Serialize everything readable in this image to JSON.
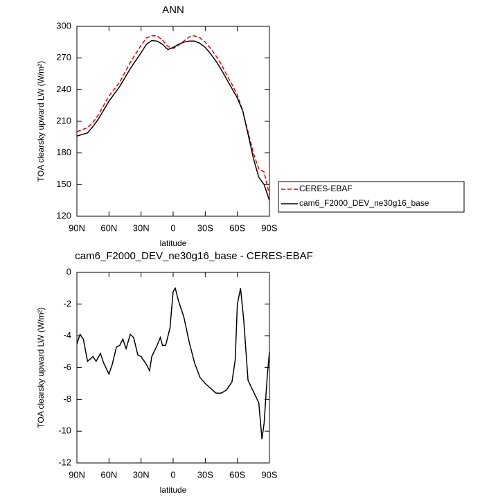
{
  "chart_data": [
    {
      "type": "line",
      "title": "ANN",
      "x_label": "latitude",
      "y_label": "TOA clearsky upward LW (W/m²)",
      "x": [
        90,
        80,
        75,
        70,
        60,
        50,
        40,
        30,
        25,
        20,
        15,
        10,
        5,
        0,
        -5,
        -10,
        -15,
        -20,
        -25,
        -30,
        -35,
        -40,
        -45,
        -50,
        -55,
        -60,
        -65,
        -70,
        -75,
        -80,
        -85,
        -90
      ],
      "series": [
        {
          "name": "CERES-EBAF",
          "color": "#e00000",
          "dashed": true,
          "values": [
            200,
            204,
            209,
            216,
            234,
            247,
            266,
            282,
            289,
            291,
            291,
            287,
            281,
            279,
            282,
            286,
            290,
            291,
            289,
            285,
            279,
            272,
            264,
            254,
            245,
            235,
            220,
            200,
            180,
            165,
            162,
            140
          ]
        },
        {
          "name": "cam6_F2000_DEV_ne30g16_base",
          "color": "#000000",
          "dashed": false,
          "values": [
            196,
            199,
            205,
            212,
            229,
            243,
            260,
            275,
            283,
            286.5,
            286,
            283,
            278,
            280,
            283,
            285,
            286,
            286,
            284,
            280,
            274,
            267,
            259,
            250,
            241,
            232,
            220,
            198,
            175,
            157,
            150,
            135
          ]
        }
      ],
      "xlim": [
        90,
        -90
      ],
      "xticks": [
        {
          "value": 90,
          "label": "90N"
        },
        {
          "value": 60,
          "label": "60N"
        },
        {
          "value": 30,
          "label": "30N"
        },
        0,
        {
          "value": -30,
          "label": "30S"
        },
        {
          "value": -60,
          "label": "60S"
        },
        {
          "value": -90,
          "label": "90S"
        }
      ],
      "ylim": [
        120,
        300
      ],
      "yticks": [
        120,
        150,
        180,
        210,
        240,
        270,
        300
      ],
      "legend_position": "right"
    },
    {
      "type": "line",
      "title": "cam6_F2000_DEV_ne30g16_base - CERES-EBAF",
      "x_label": "latitude",
      "y_label": "TOA clearsky upward LW (W/m²)",
      "x": [
        90,
        87,
        84,
        80,
        75,
        72,
        68,
        65,
        60,
        57,
        53,
        50,
        47,
        44,
        40,
        37,
        33,
        30,
        25,
        22,
        20,
        15,
        12,
        10,
        7,
        3,
        0,
        -2,
        -5,
        -10,
        -15,
        -20,
        -25,
        -30,
        -35,
        -40,
        -45,
        -50,
        -55,
        -58,
        -60,
        -63,
        -66,
        -70,
        -75,
        -80,
        -83,
        -85,
        -88,
        -90
      ],
      "series": [
        {
          "color": "#000000",
          "values": [
            -4.5,
            -3.9,
            -4.2,
            -5.6,
            -5.3,
            -5.6,
            -5.1,
            -5.7,
            -6.4,
            -5.8,
            -4.7,
            -4.6,
            -4.2,
            -4.8,
            -3.9,
            -4.1,
            -5.2,
            -5.3,
            -5.8,
            -6.2,
            -5.3,
            -4.6,
            -4.1,
            -4.6,
            -4.6,
            -3.5,
            -1.2,
            -1.0,
            -1.8,
            -2.8,
            -4.4,
            -5.7,
            -6.6,
            -7.0,
            -7.3,
            -7.6,
            -7.6,
            -7.4,
            -6.9,
            -5.5,
            -2.0,
            -1.0,
            -3.0,
            -6.8,
            -7.5,
            -8.2,
            -10.5,
            -9.5,
            -6.5,
            -5.0
          ]
        }
      ],
      "xlim": [
        90,
        -90
      ],
      "xticks": [
        {
          "value": 90,
          "label": "90N"
        },
        {
          "value": 60,
          "label": "60N"
        },
        {
          "value": 30,
          "label": "30N"
        },
        0,
        {
          "value": -30,
          "label": "30S"
        },
        {
          "value": -60,
          "label": "60S"
        },
        {
          "value": -90,
          "label": "90S"
        }
      ],
      "ylim": [
        -12,
        0
      ],
      "yticks": [
        -12,
        -10,
        -8,
        -6,
        -4,
        -2,
        0
      ]
    }
  ]
}
